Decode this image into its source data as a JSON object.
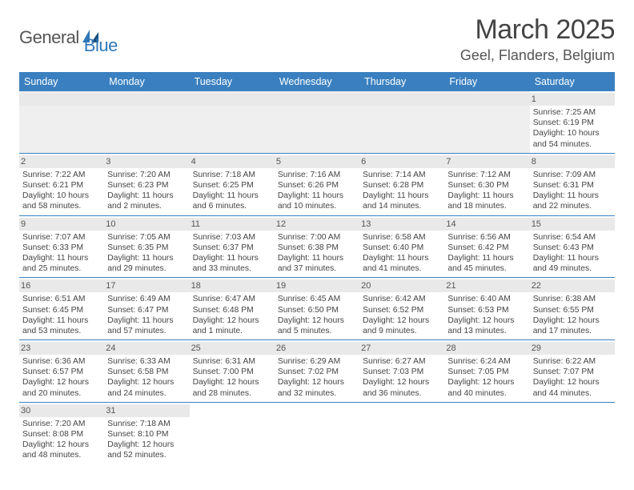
{
  "logo": {
    "text1": "General",
    "text2": "Blue"
  },
  "title": "March 2025",
  "location": "Geel, Flanders, Belgium",
  "colors": {
    "header_bg": "#3a80c0",
    "header_fg": "#ffffff",
    "daynum_bg": "#e9e9e9",
    "border": "#3a80c0",
    "text": "#444444"
  },
  "dayHeaders": [
    "Sunday",
    "Monday",
    "Tuesday",
    "Wednesday",
    "Thursday",
    "Friday",
    "Saturday"
  ],
  "weeks": [
    [
      null,
      null,
      null,
      null,
      null,
      null,
      {
        "n": "1",
        "sr": "7:25 AM",
        "ss": "6:19 PM",
        "dl": "10 hours and 54 minutes."
      }
    ],
    [
      {
        "n": "2",
        "sr": "7:22 AM",
        "ss": "6:21 PM",
        "dl": "10 hours and 58 minutes."
      },
      {
        "n": "3",
        "sr": "7:20 AM",
        "ss": "6:23 PM",
        "dl": "11 hours and 2 minutes."
      },
      {
        "n": "4",
        "sr": "7:18 AM",
        "ss": "6:25 PM",
        "dl": "11 hours and 6 minutes."
      },
      {
        "n": "5",
        "sr": "7:16 AM",
        "ss": "6:26 PM",
        "dl": "11 hours and 10 minutes."
      },
      {
        "n": "6",
        "sr": "7:14 AM",
        "ss": "6:28 PM",
        "dl": "11 hours and 14 minutes."
      },
      {
        "n": "7",
        "sr": "7:12 AM",
        "ss": "6:30 PM",
        "dl": "11 hours and 18 minutes."
      },
      {
        "n": "8",
        "sr": "7:09 AM",
        "ss": "6:31 PM",
        "dl": "11 hours and 22 minutes."
      }
    ],
    [
      {
        "n": "9",
        "sr": "7:07 AM",
        "ss": "6:33 PM",
        "dl": "11 hours and 25 minutes."
      },
      {
        "n": "10",
        "sr": "7:05 AM",
        "ss": "6:35 PM",
        "dl": "11 hours and 29 minutes."
      },
      {
        "n": "11",
        "sr": "7:03 AM",
        "ss": "6:37 PM",
        "dl": "11 hours and 33 minutes."
      },
      {
        "n": "12",
        "sr": "7:00 AM",
        "ss": "6:38 PM",
        "dl": "11 hours and 37 minutes."
      },
      {
        "n": "13",
        "sr": "6:58 AM",
        "ss": "6:40 PM",
        "dl": "11 hours and 41 minutes."
      },
      {
        "n": "14",
        "sr": "6:56 AM",
        "ss": "6:42 PM",
        "dl": "11 hours and 45 minutes."
      },
      {
        "n": "15",
        "sr": "6:54 AM",
        "ss": "6:43 PM",
        "dl": "11 hours and 49 minutes."
      }
    ],
    [
      {
        "n": "16",
        "sr": "6:51 AM",
        "ss": "6:45 PM",
        "dl": "11 hours and 53 minutes."
      },
      {
        "n": "17",
        "sr": "6:49 AM",
        "ss": "6:47 PM",
        "dl": "11 hours and 57 minutes."
      },
      {
        "n": "18",
        "sr": "6:47 AM",
        "ss": "6:48 PM",
        "dl": "12 hours and 1 minute."
      },
      {
        "n": "19",
        "sr": "6:45 AM",
        "ss": "6:50 PM",
        "dl": "12 hours and 5 minutes."
      },
      {
        "n": "20",
        "sr": "6:42 AM",
        "ss": "6:52 PM",
        "dl": "12 hours and 9 minutes."
      },
      {
        "n": "21",
        "sr": "6:40 AM",
        "ss": "6:53 PM",
        "dl": "12 hours and 13 minutes."
      },
      {
        "n": "22",
        "sr": "6:38 AM",
        "ss": "6:55 PM",
        "dl": "12 hours and 17 minutes."
      }
    ],
    [
      {
        "n": "23",
        "sr": "6:36 AM",
        "ss": "6:57 PM",
        "dl": "12 hours and 20 minutes."
      },
      {
        "n": "24",
        "sr": "6:33 AM",
        "ss": "6:58 PM",
        "dl": "12 hours and 24 minutes."
      },
      {
        "n": "25",
        "sr": "6:31 AM",
        "ss": "7:00 PM",
        "dl": "12 hours and 28 minutes."
      },
      {
        "n": "26",
        "sr": "6:29 AM",
        "ss": "7:02 PM",
        "dl": "12 hours and 32 minutes."
      },
      {
        "n": "27",
        "sr": "6:27 AM",
        "ss": "7:03 PM",
        "dl": "12 hours and 36 minutes."
      },
      {
        "n": "28",
        "sr": "6:24 AM",
        "ss": "7:05 PM",
        "dl": "12 hours and 40 minutes."
      },
      {
        "n": "29",
        "sr": "6:22 AM",
        "ss": "7:07 PM",
        "dl": "12 hours and 44 minutes."
      }
    ],
    [
      {
        "n": "30",
        "sr": "7:20 AM",
        "ss": "8:08 PM",
        "dl": "12 hours and 48 minutes."
      },
      {
        "n": "31",
        "sr": "7:18 AM",
        "ss": "8:10 PM",
        "dl": "12 hours and 52 minutes."
      },
      null,
      null,
      null,
      null,
      null
    ]
  ],
  "labels": {
    "sunrise": "Sunrise:",
    "sunset": "Sunset:",
    "daylight": "Daylight:"
  }
}
